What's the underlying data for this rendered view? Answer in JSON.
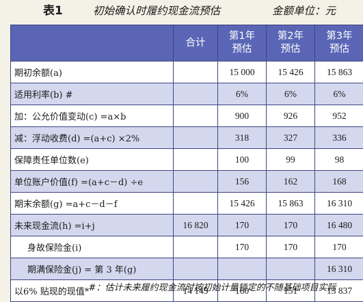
{
  "caption": {
    "label": "表1",
    "title": "初始确认时履约现金流预估",
    "unit": "金额单位：元"
  },
  "table": {
    "headers": {
      "total": "合计",
      "year1": "第1年\n预估",
      "year2": "第2年\n预估",
      "year3": "第3年\n预估"
    },
    "rows": [
      {
        "label": "期初余额(a)",
        "total": "",
        "y1": "15 000",
        "y2": "15 426",
        "y3": "15 863",
        "indent": false
      },
      {
        "label": "适用利率(b) #",
        "total": "",
        "y1": "6%",
        "y2": "6%",
        "y3": "6%",
        "indent": false
      },
      {
        "label": "加：公允价值变动(c) =a×b",
        "total": "",
        "y1": "900",
        "y2": "926",
        "y3": "952",
        "indent": false
      },
      {
        "label": "减：浮动收费(d) =(a+c) ×2%",
        "total": "",
        "y1": "318",
        "y2": "327",
        "y3": "336",
        "indent": false
      },
      {
        "label": "保障责任单位数(e)",
        "total": "",
        "y1": "100",
        "y2": "99",
        "y3": "98",
        "indent": false
      },
      {
        "label": "单位账户价值(f) =(a+c－d) ÷e",
        "total": "",
        "y1": "156",
        "y2": "162",
        "y3": "168",
        "indent": false
      },
      {
        "label": "期末余额(g) =a+c－d－f",
        "total": "",
        "y1": "15 426",
        "y2": "15 863",
        "y3": "16 310",
        "indent": false
      },
      {
        "label": "未来现金流(h) =i+j",
        "total": "16 820",
        "y1": "170",
        "y2": "170",
        "y3": "16 480",
        "indent": false
      },
      {
        "label": "身故保险金(i)",
        "total": "",
        "y1": "170",
        "y2": "170",
        "y3": "170",
        "indent": true
      },
      {
        "label": "期满保险金(j) = 第 3 年(g)",
        "total": "",
        "y1": "",
        "y2": "",
        "y3": "16 310",
        "indent": true
      },
      {
        "label": "以6% 贴现的现值*",
        "total": "14 149",
        "y1": "160",
        "y2": "151",
        "y3": "13 837",
        "indent": false
      }
    ]
  },
  "footnote": "#：估计未来履约现金流时按初始计量锁定的不随基础项目实际",
  "colors": {
    "header_bg": "#5a66b5",
    "shaded_row": "#d4d8ee",
    "plain_row": "#ffffff",
    "border": "#3d4380"
  }
}
